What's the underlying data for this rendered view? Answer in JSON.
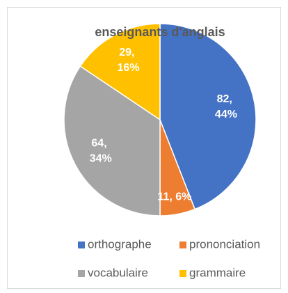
{
  "chart_data": {
    "type": "pie",
    "title": "enseignants d'anglais",
    "categories": [
      "orthographe",
      "prononciation",
      "vocabulaire",
      "grammaire"
    ],
    "values": [
      82,
      11,
      64,
      29
    ],
    "value_labels": [
      "82, 44%",
      "11, 6%",
      "64, 34%",
      "29, 16%"
    ],
    "colors": [
      "#4472c4",
      "#ed7d31",
      "#a5a5a5",
      "#ffc000"
    ],
    "legend": "bottom"
  }
}
